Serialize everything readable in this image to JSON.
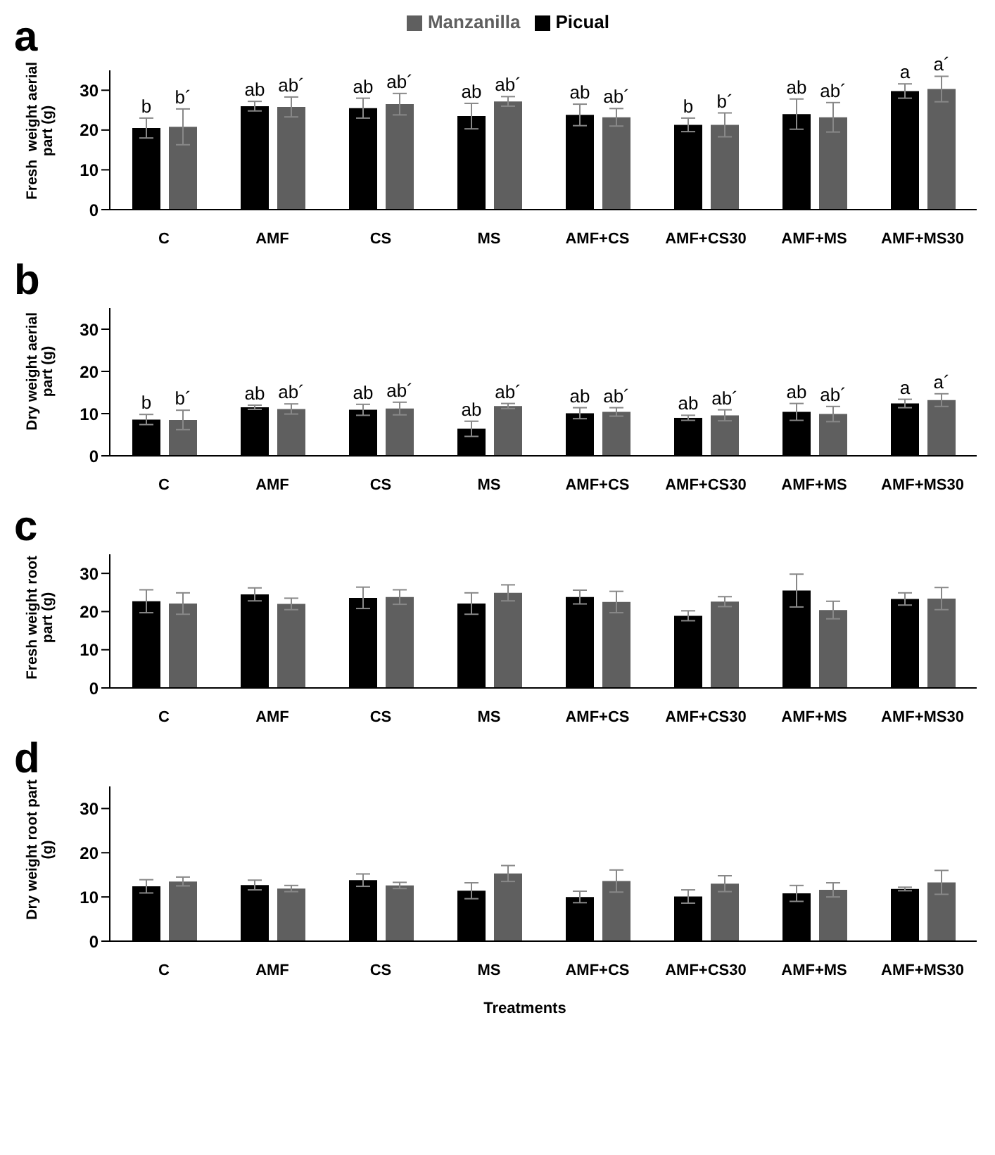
{
  "chart_data": [
    {
      "type": "bar",
      "title": "a",
      "ylabel": "Fresh  weight aerial part (g)",
      "categories": [
        "C",
        "AMF",
        "CS",
        "MS",
        "AMF+CS",
        "AMF+CS30",
        "AMF+MS",
        "AMF+MS30"
      ],
      "ylim": [
        0,
        35
      ],
      "yticks": [
        0,
        10,
        20,
        30
      ],
      "legend": "top",
      "grid": false,
      "series": [
        {
          "name": "Picual",
          "color": "#000000",
          "values": [
            20.5,
            26,
            25.5,
            23.5,
            23.8,
            21.3,
            24,
            29.8
          ],
          "errors": [
            2.5,
            1.2,
            2.5,
            3.2,
            2.7,
            1.7,
            3.8,
            1.8
          ],
          "value_labels": [
            "b",
            "ab",
            "ab",
            "ab",
            "ab",
            "b",
            "ab",
            "a"
          ]
        },
        {
          "name": "Manzanilla",
          "color": "#5f5f5f",
          "values": [
            20.8,
            25.8,
            26.5,
            27.2,
            23.2,
            21.3,
            23.2,
            30.3
          ],
          "errors": [
            4.5,
            2.5,
            2.7,
            1.2,
            2.2,
            3,
            3.7,
            3.2
          ],
          "value_labels": [
            "b´",
            "ab´",
            "ab´",
            "ab´",
            "ab´",
            "b´",
            "ab´",
            "a´"
          ]
        }
      ]
    },
    {
      "type": "bar",
      "title": "b",
      "ylabel": "Dry weight aerial part (g)",
      "categories": [
        "C",
        "AMF",
        "CS",
        "MS",
        "AMF+CS",
        "AMF+CS30",
        "AMF+MS",
        "AMF+MS30"
      ],
      "ylim": [
        0,
        35
      ],
      "yticks": [
        0,
        10,
        20,
        30
      ],
      "grid": false,
      "series": [
        {
          "color": "#000000",
          "values": [
            8.6,
            11.5,
            10.9,
            6.4,
            10.1,
            9.0,
            10.4,
            12.4
          ],
          "errors": [
            1.2,
            0.5,
            1.3,
            1.8,
            1.3,
            0.6,
            2,
            1
          ],
          "value_labels": [
            "b",
            "ab",
            "ab",
            "ab",
            "ab",
            "ab",
            "ab",
            "a"
          ]
        },
        {
          "color": "#5f5f5f",
          "values": [
            8.5,
            11.1,
            11.2,
            11.8,
            10.4,
            9.6,
            9.9,
            13.2
          ],
          "errors": [
            2.3,
            1.2,
            1.5,
            0.6,
            1,
            1.3,
            1.8,
            1.5
          ],
          "value_labels": [
            "b´",
            "ab´",
            "ab´",
            "ab´",
            "ab´",
            "ab´",
            "ab´",
            "a´"
          ]
        }
      ]
    },
    {
      "type": "bar",
      "title": "c",
      "ylabel": "Fresh weight root part (g)",
      "categories": [
        "C",
        "AMF",
        "CS",
        "MS",
        "AMF+CS",
        "AMF+CS30",
        "AMF+MS",
        "AMF+MS30"
      ],
      "ylim": [
        0,
        35
      ],
      "yticks": [
        0,
        10,
        20,
        30
      ],
      "grid": false,
      "series": [
        {
          "color": "#000000",
          "values": [
            22.7,
            24.5,
            23.6,
            22.1,
            23.8,
            18.9,
            25.5,
            23.3
          ],
          "errors": [
            3,
            1.7,
            2.8,
            2.8,
            1.8,
            1.3,
            4.3,
            1.6
          ]
        },
        {
          "color": "#5f5f5f",
          "values": [
            22.1,
            22,
            23.8,
            24.9,
            22.5,
            22.6,
            20.4,
            23.4
          ],
          "errors": [
            2.8,
            1.5,
            1.9,
            2.1,
            2.8,
            1.3,
            2.3,
            2.9
          ]
        }
      ]
    },
    {
      "type": "bar",
      "title": "d",
      "ylabel": "Dry weight root part (g)",
      "xlabel": "Treatments",
      "categories": [
        "C",
        "AMF",
        "CS",
        "MS",
        "AMF+CS",
        "AMF+CS30",
        "AMF+MS",
        "AMF+MS30"
      ],
      "ylim": [
        0,
        35
      ],
      "yticks": [
        0,
        10,
        20,
        30
      ],
      "grid": false,
      "series": [
        {
          "color": "#000000",
          "values": [
            12.4,
            12.7,
            13.8,
            11.4,
            10,
            10.1,
            10.8,
            11.8
          ],
          "errors": [
            1.5,
            1.1,
            1.4,
            1.8,
            1.3,
            1.5,
            1.8,
            0.4
          ]
        },
        {
          "color": "#5f5f5f",
          "values": [
            13.5,
            11.9,
            12.6,
            15.3,
            13.6,
            13,
            11.6,
            13.3
          ],
          "errors": [
            1,
            0.7,
            0.7,
            1.8,
            2.5,
            1.8,
            1.6,
            2.7
          ]
        }
      ]
    }
  ]
}
